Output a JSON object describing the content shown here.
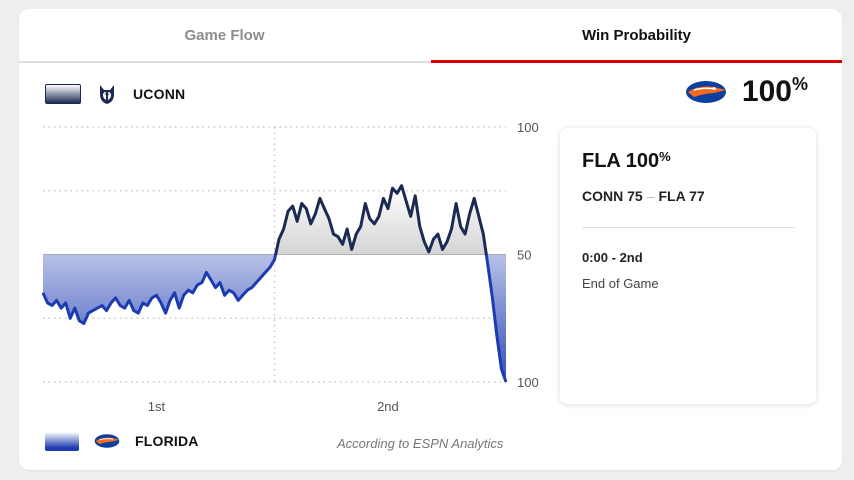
{
  "tabs": [
    {
      "label": "Game Flow",
      "active": false
    },
    {
      "label": "Win Probability",
      "active": true
    }
  ],
  "teams": {
    "top": {
      "name": "UCONN",
      "logo": "huskies-logo-icon"
    },
    "bottom": {
      "name": "FLORIDA",
      "logo": "gators-logo-icon"
    }
  },
  "leader": {
    "logo": "gators-logo-icon",
    "value": "100",
    "unit": "%"
  },
  "chart_data": {
    "type": "line",
    "x_labels": [
      "1st",
      "2nd"
    ],
    "y_labels": [
      "100",
      "50",
      "100"
    ],
    "ylim": [
      0,
      100
    ],
    "baseline": 50,
    "series": [
      {
        "values": [
          35,
          31,
          30,
          32,
          29,
          31,
          25,
          29,
          24,
          23,
          27,
          28,
          29,
          30,
          28,
          31,
          33,
          30,
          29,
          32,
          28,
          27,
          31,
          30,
          33,
          34,
          31,
          27,
          32,
          35,
          29,
          34,
          36,
          35,
          38,
          39,
          43,
          40,
          37,
          39,
          34,
          36,
          35,
          32,
          34,
          36,
          37,
          39,
          41,
          43,
          45,
          48,
          56,
          60,
          67,
          69,
          63,
          70,
          68,
          62,
          66,
          72,
          68,
          64,
          58,
          57,
          54,
          60,
          52,
          58,
          61,
          70,
          64,
          62,
          65,
          72,
          68,
          76,
          74,
          77,
          71,
          65,
          73,
          61,
          55,
          51,
          56,
          58,
          52,
          55,
          60,
          70,
          61,
          58,
          66,
          72,
          65,
          58,
          46,
          33,
          18,
          5,
          0
        ]
      }
    ],
    "colors": {
      "line": "#1b2a52",
      "lower_line": "#1c3bb0",
      "upper_fill": "#777777",
      "lower_fill": "#1c3bb0"
    },
    "grid": true
  },
  "info": {
    "headline_team": "FLA",
    "headline_value": "100",
    "headline_unit": "%",
    "score_left": "CONN 75",
    "score_right": "FLA 77",
    "time": "0:00 - 2nd",
    "status": "End of Game"
  },
  "source": "According to ESPN Analytics"
}
